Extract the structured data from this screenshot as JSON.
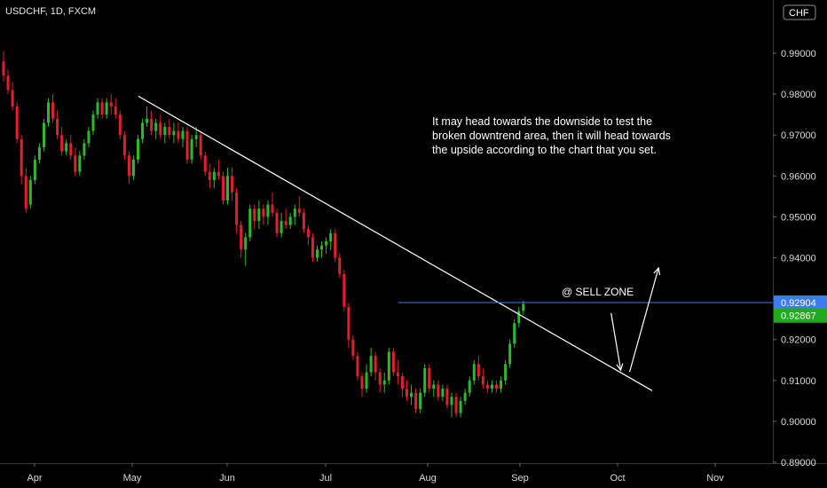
{
  "header": {
    "symbol_label": "USDCHF, 1D, FXCM",
    "currency_badge": "CHF"
  },
  "colors": {
    "up": "#2db92d",
    "down": "#e0202c",
    "trendline": "#ffffff",
    "sell_line": "#3d7bf5",
    "price_badge_blue": "#3d7bf5",
    "price_badge_green": "#1faa1f"
  },
  "annotation": {
    "lines": [
      "It may head towards the downside to test the",
      "broken downtrend area, then it will head towards",
      "the upside according to the chart that you set."
    ],
    "sell_zone_label": "@ SELL ZONE"
  },
  "chart_data": {
    "type": "candlestick",
    "title": "USDCHF, 1D, FXCM",
    "ylim": [
      0.888,
      1.0
    ],
    "y_ticks": [
      "0.99000",
      "0.98000",
      "0.97000",
      "0.96000",
      "0.95000",
      "0.94000",
      "0.93000",
      "0.92000",
      "0.91000",
      "0.90000",
      "0.89000"
    ],
    "x_ticks": [
      "Apr",
      "May",
      "Jun",
      "Jul",
      "Aug",
      "Sep",
      "Oct",
      "Nov"
    ],
    "price_labels": {
      "sell_level": "0.92904",
      "last_price": "0.92867"
    },
    "sell_level": 0.92904,
    "last_price": 0.92867,
    "trendline": {
      "start": {
        "date": "May 03",
        "price": 0.9795
      },
      "end": {
        "date": "Oct 12",
        "price": 0.9075
      }
    },
    "projection": [
      {
        "date": "Sep 29",
        "price": 0.9265
      },
      {
        "date": "Oct 02",
        "price": 0.9125
      },
      {
        "date": "Oct 14",
        "price": 0.9375
      }
    ],
    "candles_ohlc": [
      [
        0.988,
        0.9905,
        0.983,
        0.9845
      ],
      [
        0.9845,
        0.986,
        0.98,
        0.981
      ],
      [
        0.981,
        0.983,
        0.976,
        0.977
      ],
      [
        0.977,
        0.978,
        0.968,
        0.969
      ],
      [
        0.969,
        0.97,
        0.958,
        0.96
      ],
      [
        0.96,
        0.962,
        0.951,
        0.952
      ],
      [
        0.953,
        0.96,
        0.952,
        0.959
      ],
      [
        0.959,
        0.965,
        0.958,
        0.964
      ],
      [
        0.964,
        0.968,
        0.963,
        0.967
      ],
      [
        0.967,
        0.974,
        0.966,
        0.973
      ],
      [
        0.973,
        0.979,
        0.972,
        0.978
      ],
      [
        0.978,
        0.98,
        0.973,
        0.974
      ],
      [
        0.974,
        0.976,
        0.969,
        0.97
      ],
      [
        0.97,
        0.972,
        0.965,
        0.966
      ],
      [
        0.966,
        0.969,
        0.965,
        0.968
      ],
      [
        0.968,
        0.97,
        0.964,
        0.965
      ],
      [
        0.965,
        0.967,
        0.96,
        0.961
      ],
      [
        0.961,
        0.966,
        0.96,
        0.965
      ],
      [
        0.965,
        0.969,
        0.964,
        0.968
      ],
      [
        0.968,
        0.972,
        0.967,
        0.971
      ],
      [
        0.971,
        0.976,
        0.97,
        0.975
      ],
      [
        0.975,
        0.979,
        0.974,
        0.978
      ],
      [
        0.978,
        0.979,
        0.974,
        0.975
      ],
      [
        0.975,
        0.979,
        0.974,
        0.978
      ],
      [
        0.978,
        0.98,
        0.975,
        0.977
      ],
      [
        0.977,
        0.979,
        0.974,
        0.975
      ],
      [
        0.975,
        0.976,
        0.969,
        0.97
      ],
      [
        0.97,
        0.971,
        0.964,
        0.965
      ],
      [
        0.965,
        0.966,
        0.958,
        0.96
      ],
      [
        0.96,
        0.965,
        0.959,
        0.964
      ],
      [
        0.964,
        0.97,
        0.963,
        0.969
      ],
      [
        0.969,
        0.974,
        0.968,
        0.973
      ],
      [
        0.973,
        0.977,
        0.972,
        0.974
      ],
      [
        0.974,
        0.976,
        0.97,
        0.971
      ],
      [
        0.971,
        0.974,
        0.969,
        0.973
      ],
      [
        0.973,
        0.975,
        0.969,
        0.97
      ],
      [
        0.97,
        0.973,
        0.968,
        0.972
      ],
      [
        0.972,
        0.974,
        0.969,
        0.97
      ],
      [
        0.97,
        0.973,
        0.968,
        0.971
      ],
      [
        0.971,
        0.973,
        0.968,
        0.969
      ],
      [
        0.969,
        0.972,
        0.967,
        0.971
      ],
      [
        0.971,
        0.972,
        0.963,
        0.964
      ],
      [
        0.964,
        0.97,
        0.963,
        0.969
      ],
      [
        0.969,
        0.972,
        0.967,
        0.97
      ],
      [
        0.97,
        0.971,
        0.964,
        0.965
      ],
      [
        0.965,
        0.966,
        0.96,
        0.961
      ],
      [
        0.961,
        0.963,
        0.957,
        0.959
      ],
      [
        0.959,
        0.962,
        0.957,
        0.961
      ],
      [
        0.961,
        0.964,
        0.959,
        0.96
      ],
      [
        0.96,
        0.961,
        0.953,
        0.954
      ],
      [
        0.954,
        0.962,
        0.953,
        0.96
      ],
      [
        0.96,
        0.962,
        0.954,
        0.956
      ],
      [
        0.956,
        0.957,
        0.946,
        0.948
      ],
      [
        0.948,
        0.949,
        0.94,
        0.942
      ],
      [
        0.942,
        0.946,
        0.938,
        0.945
      ],
      [
        0.945,
        0.953,
        0.944,
        0.952
      ],
      [
        0.952,
        0.953,
        0.947,
        0.949
      ],
      [
        0.949,
        0.954,
        0.947,
        0.952
      ],
      [
        0.952,
        0.953,
        0.948,
        0.95
      ],
      [
        0.95,
        0.954,
        0.948,
        0.953
      ],
      [
        0.953,
        0.956,
        0.95,
        0.951
      ],
      [
        0.951,
        0.952,
        0.945,
        0.946
      ],
      [
        0.946,
        0.951,
        0.945,
        0.949
      ],
      [
        0.949,
        0.952,
        0.947,
        0.948
      ],
      [
        0.948,
        0.951,
        0.947,
        0.95
      ],
      [
        0.95,
        0.953,
        0.948,
        0.952
      ],
      [
        0.952,
        0.955,
        0.95,
        0.951
      ],
      [
        0.951,
        0.952,
        0.946,
        0.947
      ],
      [
        0.947,
        0.948,
        0.943,
        0.945
      ],
      [
        0.945,
        0.946,
        0.939,
        0.94
      ],
      [
        0.94,
        0.943,
        0.939,
        0.942
      ],
      [
        0.942,
        0.944,
        0.94,
        0.943
      ],
      [
        0.943,
        0.945,
        0.941,
        0.944
      ],
      [
        0.944,
        0.947,
        0.942,
        0.946
      ],
      [
        0.946,
        0.947,
        0.939,
        0.94
      ],
      [
        0.94,
        0.941,
        0.935,
        0.936
      ],
      [
        0.936,
        0.937,
        0.927,
        0.928
      ],
      [
        0.928,
        0.929,
        0.918,
        0.92
      ],
      [
        0.92,
        0.921,
        0.915,
        0.916
      ],
      [
        0.916,
        0.917,
        0.91,
        0.911
      ],
      [
        0.911,
        0.912,
        0.906,
        0.908
      ],
      [
        0.908,
        0.914,
        0.907,
        0.912
      ],
      [
        0.912,
        0.918,
        0.911,
        0.916
      ],
      [
        0.916,
        0.917,
        0.91,
        0.912
      ],
      [
        0.912,
        0.913,
        0.907,
        0.909
      ],
      [
        0.909,
        0.912,
        0.907,
        0.91
      ],
      [
        0.91,
        0.918,
        0.909,
        0.917
      ],
      [
        0.917,
        0.918,
        0.911,
        0.912
      ],
      [
        0.912,
        0.915,
        0.909,
        0.911
      ],
      [
        0.911,
        0.912,
        0.906,
        0.908
      ],
      [
        0.908,
        0.91,
        0.905,
        0.906
      ],
      [
        0.906,
        0.909,
        0.904,
        0.907
      ],
      [
        0.907,
        0.908,
        0.902,
        0.903
      ],
      [
        0.903,
        0.908,
        0.902,
        0.907
      ],
      [
        0.907,
        0.914,
        0.906,
        0.913
      ],
      [
        0.913,
        0.914,
        0.907,
        0.908
      ],
      [
        0.908,
        0.91,
        0.906,
        0.909
      ],
      [
        0.909,
        0.91,
        0.905,
        0.906
      ],
      [
        0.906,
        0.909,
        0.905,
        0.908
      ],
      [
        0.908,
        0.909,
        0.903,
        0.904
      ],
      [
        0.904,
        0.907,
        0.901,
        0.906
      ],
      [
        0.906,
        0.907,
        0.901,
        0.902
      ],
      [
        0.902,
        0.906,
        0.901,
        0.905
      ],
      [
        0.905,
        0.908,
        0.904,
        0.907
      ],
      [
        0.907,
        0.911,
        0.906,
        0.91
      ],
      [
        0.91,
        0.915,
        0.909,
        0.914
      ],
      [
        0.914,
        0.916,
        0.91,
        0.911
      ],
      [
        0.911,
        0.913,
        0.908,
        0.909
      ],
      [
        0.909,
        0.91,
        0.907,
        0.908
      ],
      [
        0.908,
        0.91,
        0.907,
        0.909
      ],
      [
        0.909,
        0.91,
        0.907,
        0.908
      ],
      [
        0.908,
        0.911,
        0.907,
        0.91
      ],
      [
        0.91,
        0.915,
        0.909,
        0.914
      ],
      [
        0.914,
        0.92,
        0.913,
        0.919
      ],
      [
        0.919,
        0.925,
        0.918,
        0.924
      ],
      [
        0.924,
        0.928,
        0.923,
        0.927
      ],
      [
        0.927,
        0.9295,
        0.926,
        0.9287
      ]
    ]
  }
}
